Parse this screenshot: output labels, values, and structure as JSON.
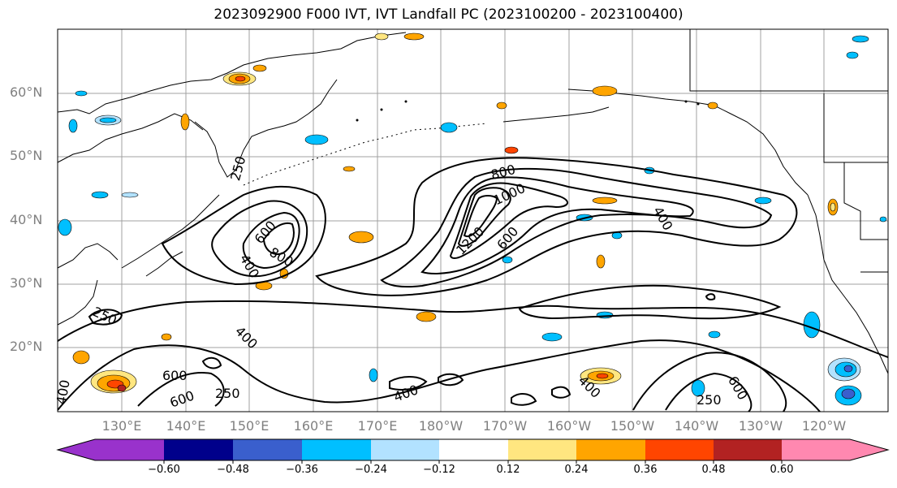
{
  "title": "2023092900 F000 IVT, IVT Landfall PC (2023100200 - 2023100400)",
  "lat_labels": [
    "60°N",
    "50°N",
    "40°N",
    "30°N",
    "20°N"
  ],
  "lon_labels": [
    "130°E",
    "140°E",
    "150°E",
    "160°E",
    "170°E",
    "180°W",
    "170°W",
    "160°W",
    "150°W",
    "140°W",
    "130°W",
    "120°W"
  ],
  "contour_labels": {
    "c250_a": "250",
    "c250_b": "250",
    "c250_c": "250",
    "c250_d": "250",
    "c400_a": "400",
    "c400_b": "400",
    "c400_c": "400",
    "c400_d": "400",
    "c400_e": "400",
    "c400_f": "400",
    "c600_a": "600",
    "c600_b": "600",
    "c600_c": "600",
    "c600_d": "600",
    "c600_e": "600",
    "c800_a": "800",
    "c800_b": "800",
    "c1000": "1000",
    "c1200": "1200"
  },
  "colorbar": {
    "ticks": [
      "−0.60",
      "−0.48",
      "−0.36",
      "−0.24",
      "−0.12",
      "0.12",
      "0.24",
      "0.36",
      "0.48",
      "0.60"
    ],
    "colors": [
      "#9932cc",
      "#00008b",
      "#3a5fcd",
      "#00bfff",
      "#b2e2ff",
      "#ffffff",
      "#ffe680",
      "#ffa500",
      "#ff4500",
      "#b22222",
      "#ff88b0"
    ]
  }
}
